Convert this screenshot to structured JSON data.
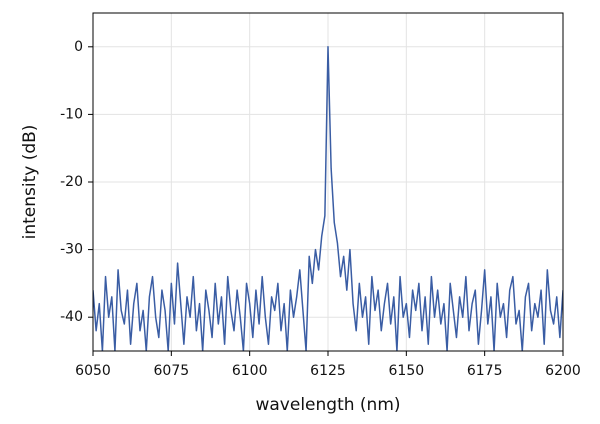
{
  "chart_data": {
    "type": "line",
    "x_label": "wavelength (nm)",
    "y_label": "intensity (dB)",
    "x": [
      6050,
      6051,
      6052,
      6053,
      6054,
      6055,
      6056,
      6057,
      6058,
      6059,
      6060,
      6061,
      6062,
      6063,
      6064,
      6065,
      6066,
      6067,
      6068,
      6069,
      6070,
      6071,
      6072,
      6073,
      6074,
      6075,
      6076,
      6077,
      6078,
      6079,
      6080,
      6081,
      6082,
      6083,
      6084,
      6085,
      6086,
      6087,
      6088,
      6089,
      6090,
      6091,
      6092,
      6093,
      6094,
      6095,
      6096,
      6097,
      6098,
      6099,
      6100,
      6101,
      6102,
      6103,
      6104,
      6105,
      6106,
      6107,
      6108,
      6109,
      6110,
      6111,
      6112,
      6113,
      6114,
      6115,
      6116,
      6117,
      6118,
      6119,
      6120,
      6121,
      6122,
      6123,
      6124,
      6125,
      6126,
      6127,
      6128,
      6129,
      6130,
      6131,
      6132,
      6133,
      6134,
      6135,
      6136,
      6137,
      6138,
      6139,
      6140,
      6141,
      6142,
      6143,
      6144,
      6145,
      6146,
      6147,
      6148,
      6149,
      6150,
      6151,
      6152,
      6153,
      6154,
      6155,
      6156,
      6157,
      6158,
      6159,
      6160,
      6161,
      6162,
      6163,
      6164,
      6165,
      6166,
      6167,
      6168,
      6169,
      6170,
      6171,
      6172,
      6173,
      6174,
      6175,
      6176,
      6177,
      6178,
      6179,
      6180,
      6181,
      6182,
      6183,
      6184,
      6185,
      6186,
      6187,
      6188,
      6189,
      6190,
      6191,
      6192,
      6193,
      6194,
      6195,
      6196,
      6197,
      6198,
      6199,
      6200
    ],
    "values": [
      -36,
      -42,
      -38,
      -45,
      -34,
      -40,
      -37,
      -45,
      -33,
      -39,
      -41,
      -36,
      -44,
      -38,
      -35,
      -42,
      -39,
      -45,
      -37,
      -34,
      -40,
      -43,
      -36,
      -39,
      -45,
      -35,
      -41,
      -32,
      -38,
      -44,
      -37,
      -40,
      -34,
      -42,
      -38,
      -45,
      -36,
      -39,
      -43,
      -35,
      -41,
      -37,
      -44,
      -34,
      -39,
      -42,
      -36,
      -40,
      -45,
      -35,
      -38,
      -43,
      -36,
      -41,
      -34,
      -40,
      -44,
      -37,
      -39,
      -35,
      -42,
      -38,
      -45,
      -36,
      -40,
      -37,
      -33,
      -39,
      -45,
      -31,
      -35,
      -30,
      -33,
      -28,
      -25,
      0,
      -18,
      -26,
      -29,
      -34,
      -31,
      -36,
      -30,
      -38,
      -42,
      -35,
      -40,
      -37,
      -44,
      -34,
      -39,
      -36,
      -42,
      -38,
      -35,
      -41,
      -37,
      -45,
      -34,
      -40,
      -38,
      -43,
      -36,
      -39,
      -35,
      -42,
      -37,
      -44,
      -34,
      -40,
      -36,
      -41,
      -38,
      -45,
      -35,
      -39,
      -43,
      -37,
      -40,
      -34,
      -42,
      -38,
      -36,
      -44,
      -39,
      -33,
      -41,
      -37,
      -45,
      -35,
      -40,
      -38,
      -43,
      -36,
      -34,
      -41,
      -39,
      -45,
      -37,
      -35,
      -42,
      -38,
      -40,
      -36,
      -44,
      -33,
      -39,
      -41,
      -37,
      -43,
      -36
    ],
    "color": "#3a5da4",
    "xlim": [
      6050,
      6200
    ],
    "xticks": [
      6050,
      6075,
      6100,
      6125,
      6150,
      6175,
      6200
    ],
    "ylim": [
      -45,
      5
    ],
    "yticks": [
      -40,
      -30,
      -20,
      -10,
      0
    ],
    "grid": true
  }
}
